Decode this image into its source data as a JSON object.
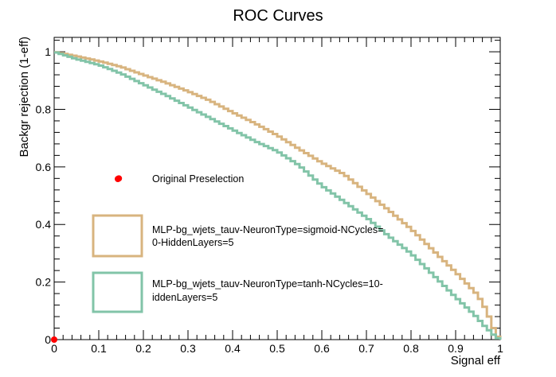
{
  "chart_data": {
    "type": "line",
    "title": "ROC Curves",
    "xlabel": "Signal eff",
    "ylabel": "Backgr rejection (1-eff)",
    "xlim": [
      0,
      1
    ],
    "ylim": [
      0,
      1.05
    ],
    "x_ticks": [
      "0",
      "0.1",
      "0.2",
      "0.3",
      "0.4",
      "0.5",
      "0.6",
      "0.7",
      "0.8",
      "0.9",
      "1"
    ],
    "y_ticks": [
      "0",
      "0.2",
      "0.4",
      "0.6",
      "0.8",
      "1"
    ],
    "grid": false,
    "legend_position": "center-left",
    "series": [
      {
        "name": "MLP-bg_wjets_tauv-NeuronType=sigmoid-NCycles=\n0-HiddenLayers=5",
        "legend_lines": [
          "MLP-bg_wjets_tauv-NeuronType=sigmoid-NCycles=",
          "0-HiddenLayers=5"
        ],
        "color": "#d8b47f",
        "x": [
          0,
          0.05,
          0.1,
          0.15,
          0.2,
          0.25,
          0.3,
          0.35,
          0.4,
          0.45,
          0.5,
          0.55,
          0.6,
          0.65,
          0.7,
          0.75,
          0.8,
          0.85,
          0.9,
          0.95,
          0.97,
          0.98,
          0.99,
          1.0
        ],
        "y": [
          1.0,
          0.985,
          0.968,
          0.948,
          0.92,
          0.893,
          0.863,
          0.83,
          0.79,
          0.752,
          0.71,
          0.662,
          0.615,
          0.575,
          0.512,
          0.45,
          0.385,
          0.31,
          0.235,
          0.155,
          0.1,
          0.06,
          0.02,
          0.0
        ]
      },
      {
        "name": "MLP-bg_wjets_tauv-NeuronType=tanh-NCycles=10-\niddenLayers=5",
        "legend_lines": [
          "MLP-bg_wjets_tauv-NeuronType=tanh-NCycles=10-",
          "iddenLayers=5"
        ],
        "color": "#82c4a8",
        "x": [
          0,
          0.05,
          0.1,
          0.15,
          0.2,
          0.25,
          0.3,
          0.35,
          0.4,
          0.45,
          0.5,
          0.55,
          0.6,
          0.65,
          0.7,
          0.75,
          0.8,
          0.85,
          0.9,
          0.95,
          0.96,
          0.97,
          0.98,
          0.99,
          1.0
        ],
        "y": [
          1.0,
          0.975,
          0.955,
          0.925,
          0.887,
          0.85,
          0.81,
          0.77,
          0.73,
          0.69,
          0.655,
          0.605,
          0.535,
          0.48,
          0.425,
          0.36,
          0.3,
          0.225,
          0.148,
          0.075,
          0.055,
          0.04,
          0.025,
          0.01,
          0.0
        ]
      }
    ],
    "markers": [
      {
        "name": "Original Preselection",
        "x": 0.145,
        "y": 0.56,
        "color": "#ff0000"
      },
      {
        "name": "",
        "x": 0.0,
        "y": 0.0,
        "color": "#ff0000"
      }
    ]
  }
}
